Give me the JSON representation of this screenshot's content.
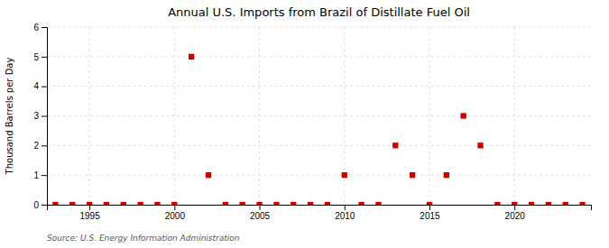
{
  "chart_data": {
    "type": "scatter",
    "title": "Annual U.S. Imports from Brazil of Distillate Fuel Oil",
    "ylabel": "Thousand Barrels per Day",
    "annotations": [
      "Source: U.S. Energy Information Administration"
    ],
    "x": [
      1993,
      1994,
      1995,
      1996,
      1997,
      1998,
      1999,
      2000,
      2001,
      2002,
      2003,
      2004,
      2005,
      2006,
      2007,
      2008,
      2009,
      2010,
      2011,
      2012,
      2013,
      2014,
      2015,
      2016,
      2017,
      2018,
      2019,
      2020,
      2021,
      2022,
      2023,
      2024
    ],
    "values": [
      0,
      0,
      0,
      0,
      0,
      0,
      0,
      0,
      5,
      1,
      0,
      0,
      0,
      0,
      0,
      0,
      0,
      1,
      0,
      0,
      2,
      1,
      0,
      1,
      3,
      2,
      0,
      0,
      0,
      0,
      0,
      0
    ],
    "color": "#cc0000",
    "marker": "square",
    "xlim": [
      1992.5,
      2024.5
    ],
    "ylim": [
      0,
      6
    ],
    "xticks": [
      1995,
      2000,
      2005,
      2010,
      2015,
      2020
    ],
    "yticks": [
      0,
      1,
      2,
      3,
      4,
      5,
      6
    ],
    "grid": true
  }
}
